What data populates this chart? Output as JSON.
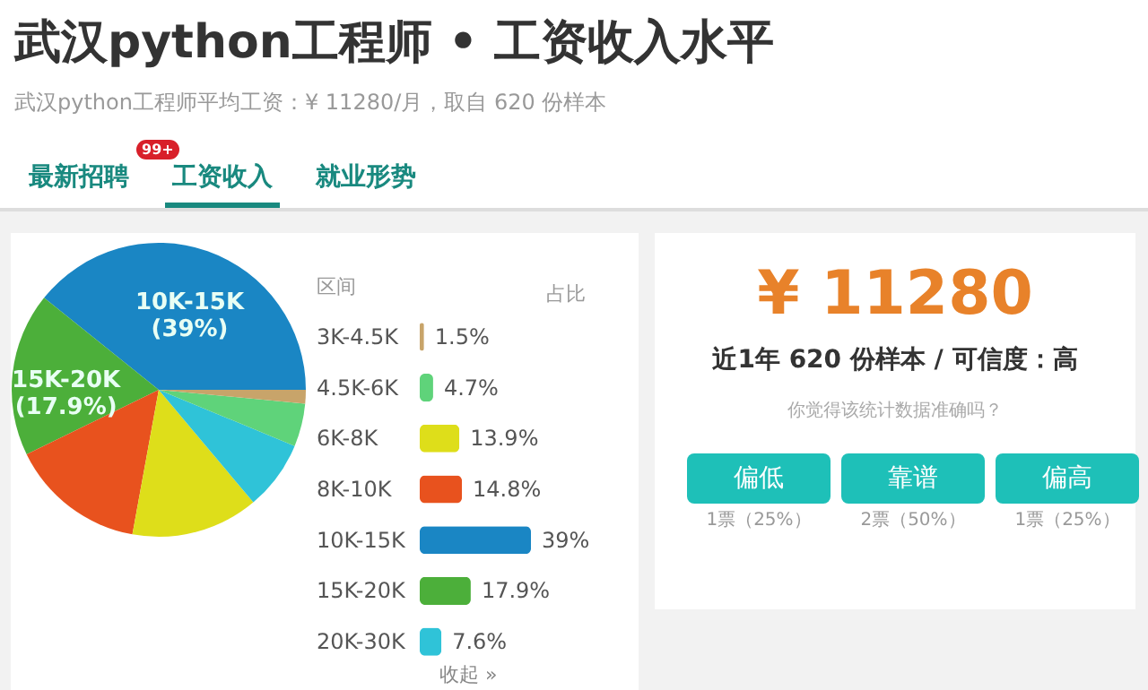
{
  "chart_data": [
    {
      "type": "pie",
      "title": "武汉python工程师 • 工资收入水平",
      "subtitle": "武汉python工程师平均工资：¥ 11280/月，取自 620 份样本",
      "annotations": [
        "最新招聘",
        "99+",
        "工资收入",
        "就业形势"
      ],
      "categories": [
        "10K-15K",
        "15K-20K",
        null,
        null,
        null,
        null,
        null
      ],
      "values": [
        39,
        17.9,
        14.8,
        13.9,
        7.6,
        4.7,
        1.5
      ],
      "colors": [
        "#1a86c4",
        "#4caf3a",
        "#e8521e",
        "#dede1a",
        "#2fc3d8",
        "#5fd37a",
        "#c8a46a"
      ],
      "value_labels": [
        "(39%)",
        "(17.9%)",
        null,
        null,
        null,
        null,
        null
      ]
    },
    {
      "type": "bar",
      "orientation": "horizontal",
      "ylabel": "区间",
      "xlabel": "占比",
      "annotations": [
        "收起 »"
      ],
      "categories": [
        "3K-4.5K",
        "4.5K-6K",
        "6K-8K",
        "8K-10K",
        "10K-15K",
        "15K-20K",
        "20K-30K"
      ],
      "values": [
        1.5,
        4.7,
        13.9,
        14.8,
        39,
        17.9,
        7.6
      ],
      "colors": [
        "#c8a46a",
        "#5fd37a",
        "#dede1a",
        "#e8521e",
        "#1a86c4",
        "#4caf3a",
        "#2fc3d8"
      ],
      "value_labels": [
        "1.5%",
        "4.7%",
        "13.9%",
        "14.8%",
        "39%",
        "17.9%",
        "7.6%"
      ]
    },
    {
      "type": "other",
      "title": "¥ 11280",
      "subtitle": "近1年 620 份样本 / 可信度：高",
      "annotations": [
        "你觉得该统计数据准确吗？",
        "偏低",
        "1票（25%）",
        "靠谱",
        "2票（50%）",
        "偏高",
        "1票（25%）"
      ]
    }
  ]
}
